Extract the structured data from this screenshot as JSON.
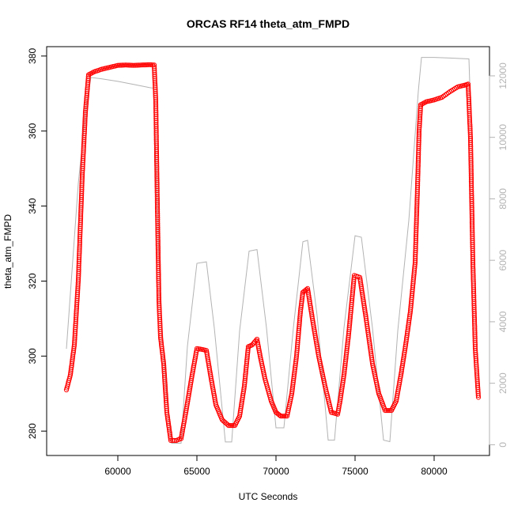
{
  "chart_data": {
    "type": "scatter",
    "title": "ORCAS RF14 theta_atm_FMPD",
    "xlabel": "UTC Seconds",
    "ylabel": "theta_atm_FMPD",
    "xlim": [
      55500,
      83500
    ],
    "ylim": [
      273.5,
      382.5
    ],
    "y2lim": [
      -350,
      12950
    ],
    "grid": false,
    "x_ticks": [
      60000,
      65000,
      70000,
      75000,
      80000
    ],
    "y_ticks": [
      280,
      300,
      320,
      340,
      360,
      380
    ],
    "y2_ticks": [
      0,
      2000,
      4000,
      6000,
      8000,
      10000,
      12000
    ],
    "series": [
      {
        "name": "",
        "kind": "points",
        "color": "#ff0000",
        "points": [
          [
            56750,
            291
          ],
          [
            57000,
            295
          ],
          [
            57250,
            303
          ],
          [
            57500,
            320
          ],
          [
            57750,
            348
          ],
          [
            57950,
            365
          ],
          [
            58150,
            375
          ],
          [
            58500,
            375.8
          ],
          [
            59000,
            376.5
          ],
          [
            59500,
            377
          ],
          [
            60000,
            377.5
          ],
          [
            60500,
            377.6
          ],
          [
            61000,
            377.5
          ],
          [
            61500,
            377.6
          ],
          [
            62000,
            377.7
          ],
          [
            62300,
            377.6
          ],
          [
            62400,
            368
          ],
          [
            62500,
            340
          ],
          [
            62600,
            315
          ],
          [
            62700,
            305
          ],
          [
            62900,
            298
          ],
          [
            63100,
            285
          ],
          [
            63350,
            277.5
          ],
          [
            63700,
            277.5
          ],
          [
            64000,
            278
          ],
          [
            64300,
            285
          ],
          [
            64700,
            295
          ],
          [
            65000,
            302
          ],
          [
            65300,
            301.8
          ],
          [
            65600,
            301.5
          ],
          [
            65900,
            294
          ],
          [
            66200,
            287
          ],
          [
            66600,
            283
          ],
          [
            67000,
            281.5
          ],
          [
            67400,
            281.5
          ],
          [
            67700,
            284
          ],
          [
            68000,
            292
          ],
          [
            68250,
            302.5
          ],
          [
            68500,
            303
          ],
          [
            68800,
            304.5
          ],
          [
            69000,
            300
          ],
          [
            69300,
            294
          ],
          [
            69700,
            288
          ],
          [
            70000,
            285
          ],
          [
            70300,
            284
          ],
          [
            70700,
            284
          ],
          [
            71000,
            290
          ],
          [
            71300,
            300
          ],
          [
            71550,
            312
          ],
          [
            71700,
            317
          ],
          [
            72000,
            318
          ],
          [
            72300,
            310
          ],
          [
            72700,
            300
          ],
          [
            73100,
            292
          ],
          [
            73500,
            285
          ],
          [
            73900,
            284.5
          ],
          [
            74050,
            288
          ],
          [
            74300,
            295
          ],
          [
            74600,
            306
          ],
          [
            74950,
            321.5
          ],
          [
            75300,
            321
          ],
          [
            75700,
            310
          ],
          [
            76100,
            298
          ],
          [
            76500,
            290
          ],
          [
            76900,
            285.5
          ],
          [
            77300,
            285.5
          ],
          [
            77600,
            288
          ],
          [
            77900,
            295
          ],
          [
            78200,
            303
          ],
          [
            78500,
            312
          ],
          [
            78800,
            325
          ],
          [
            78950,
            345
          ],
          [
            79050,
            360
          ],
          [
            79150,
            367
          ],
          [
            79500,
            367.8
          ],
          [
            80000,
            368.3
          ],
          [
            80500,
            369
          ],
          [
            81000,
            370.5
          ],
          [
            81500,
            371.8
          ],
          [
            82000,
            372.3
          ],
          [
            82150,
            372.5
          ],
          [
            82300,
            358
          ],
          [
            82450,
            325
          ],
          [
            82600,
            302
          ],
          [
            82800,
            289
          ]
        ]
      },
      {
        "name": "",
        "kind": "line",
        "axis": "right",
        "color": "#b3b3b3",
        "points": [
          [
            56750,
            3120
          ],
          [
            57500,
            8500
          ],
          [
            58000,
            11000
          ],
          [
            58300,
            11950
          ],
          [
            59000,
            11900
          ],
          [
            60000,
            11820
          ],
          [
            61000,
            11720
          ],
          [
            62000,
            11620
          ],
          [
            62250,
            11600
          ],
          [
            62700,
            4600
          ],
          [
            63100,
            1500
          ],
          [
            63400,
            50
          ],
          [
            64000,
            50
          ],
          [
            64400,
            3200
          ],
          [
            65000,
            5900
          ],
          [
            65600,
            5950
          ],
          [
            66100,
            3800
          ],
          [
            66800,
            90
          ],
          [
            67200,
            90
          ],
          [
            67700,
            3700
          ],
          [
            68300,
            6300
          ],
          [
            68800,
            6350
          ],
          [
            69400,
            3800
          ],
          [
            70000,
            550
          ],
          [
            70500,
            550
          ],
          [
            71100,
            3800
          ],
          [
            71700,
            6600
          ],
          [
            72000,
            6650
          ],
          [
            72600,
            4200
          ],
          [
            73300,
            150
          ],
          [
            73700,
            150
          ],
          [
            74300,
            3800
          ],
          [
            75000,
            6800
          ],
          [
            75400,
            6750
          ],
          [
            76100,
            3800
          ],
          [
            76800,
            150
          ],
          [
            77200,
            100
          ],
          [
            77700,
            3700
          ],
          [
            78400,
            7300
          ],
          [
            79000,
            11500
          ],
          [
            79200,
            12600
          ],
          [
            80000,
            12600
          ],
          [
            81000,
            12580
          ],
          [
            82200,
            12550
          ],
          [
            82300,
            11000
          ]
        ]
      }
    ]
  }
}
